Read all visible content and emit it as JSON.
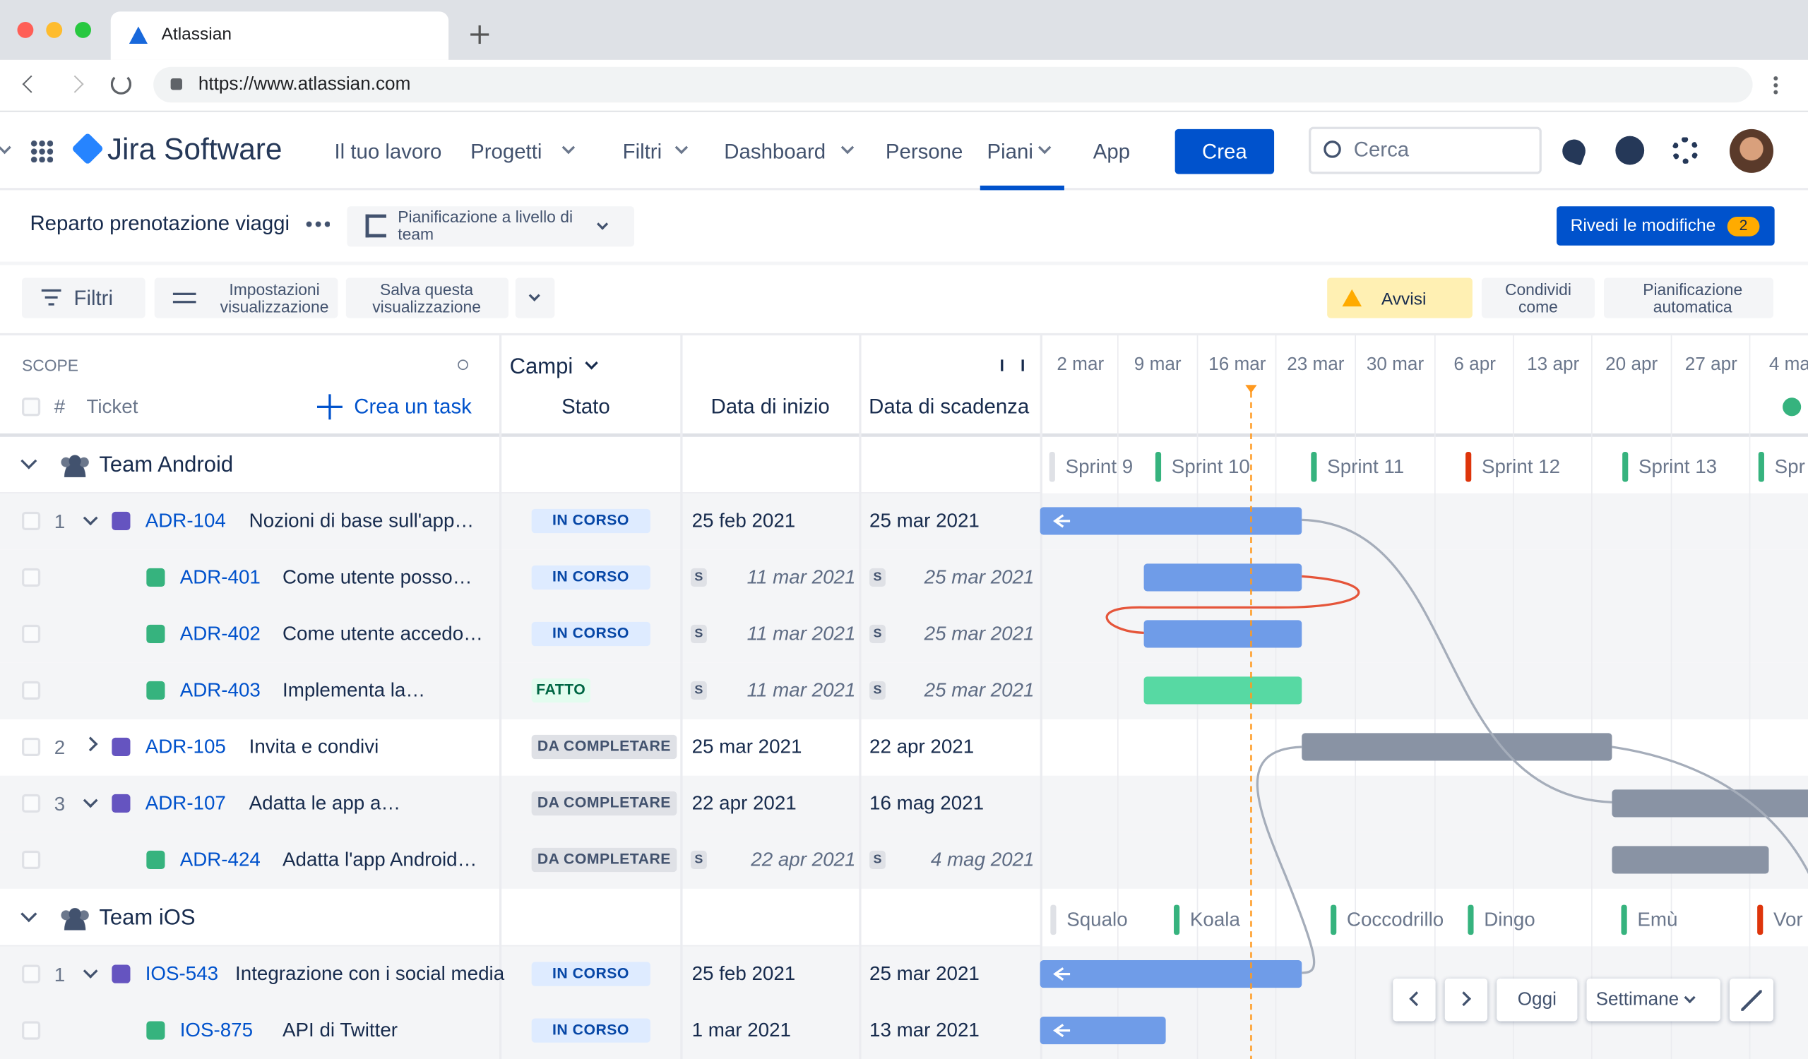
{
  "browser": {
    "tab_title": "Atlassian",
    "url": "https://www.atlassian.com"
  },
  "nav": {
    "product": "Jira Software",
    "items": [
      "Il tuo lavoro",
      "Progetti",
      "Filtri",
      "Dashboard",
      "Persone",
      "Piani",
      "App"
    ],
    "create": "Crea",
    "search": "Cerca"
  },
  "plan": {
    "title": "Reparto prenotazione viaggi",
    "view": "Pianificazione a livello di team",
    "review": "Rivedi le modifiche",
    "review_count": "2"
  },
  "toolbar": {
    "filters": "Filtri",
    "view_settings": "Impostazioni visualizzazione",
    "save_view": "Salva questa visualizzazione",
    "alerts": "Avvisi",
    "share": "Condividi come",
    "auto_schedule": "Pianificazione automatica"
  },
  "table": {
    "scope": "SCOPE",
    "number": "#",
    "ticket": "Ticket",
    "create_task": "Crea un task",
    "fields": "Campi",
    "columns": [
      "Stato",
      "Data di inizio",
      "Data di scadenza"
    ]
  },
  "timeline": {
    "weeks": [
      "2 mar",
      "9 mar",
      "16 mar",
      "23 mar",
      "30 mar",
      "6 apr",
      "13 apr",
      "20 apr",
      "27 apr",
      "4 ma"
    ]
  },
  "groups": [
    {
      "name": "Team Android",
      "sprints": [
        "Sprint 9",
        "Sprint 10",
        "Sprint 11",
        "Sprint 12",
        "Sprint 13",
        "Spr"
      ],
      "rows": [
        {
          "number": "1",
          "key": "ADR-104",
          "summary": "Nozioni di base sull'app…",
          "status": "IN CORSO",
          "start": "25 feb 2021",
          "due": "25 mar 2021"
        },
        {
          "key": "ADR-401",
          "summary": "Come utente posso…",
          "status": "IN CORSO",
          "start_badge": "S",
          "start": "11 mar 2021",
          "due_badge": "S",
          "due": "25 mar 2021"
        },
        {
          "key": "ADR-402",
          "summary": "Come utente accedo…",
          "status": "IN CORSO",
          "start_badge": "S",
          "start": "11 mar 2021",
          "due_badge": "S",
          "due": "25 mar 2021"
        },
        {
          "key": "ADR-403",
          "summary": "Implementa la…",
          "status": "FATTO",
          "start_badge": "S",
          "start": "11 mar 2021",
          "due_badge": "S",
          "due": "25 mar 2021"
        },
        {
          "number": "2",
          "key": "ADR-105",
          "summary": "Invita e condivi",
          "status": "DA COMPLETARE",
          "start": "25 mar 2021",
          "due": "22 apr 2021"
        },
        {
          "number": "3",
          "key": "ADR-107",
          "summary": "Adatta le app a…",
          "status": "DA COMPLETARE",
          "start": "22 apr 2021",
          "due": "16 mag 2021"
        },
        {
          "key": "ADR-424",
          "summary": "Adatta l'app Android…",
          "status": "DA COMPLETARE",
          "start_badge": "S",
          "start": "22 apr 2021",
          "due_badge": "S",
          "due": "4 mag 2021"
        }
      ]
    },
    {
      "name": "Team iOS",
      "sprints": [
        "Squalo",
        "Koala",
        "Coccodrillo",
        "Dingo",
        "Emù",
        "Vor"
      ],
      "rows": [
        {
          "number": "1",
          "key": "IOS-543",
          "summary": "Integrazione con i social media",
          "status": "IN CORSO",
          "start": "25 feb 2021",
          "due": "25 mar 2021"
        },
        {
          "key": "IOS-875",
          "summary": "API di Twitter",
          "status": "IN CORSO",
          "start": "1 mar 2021",
          "due": "13 mar 2021"
        }
      ]
    }
  ],
  "controls": {
    "today": "Oggi",
    "scale": "Settimane"
  }
}
